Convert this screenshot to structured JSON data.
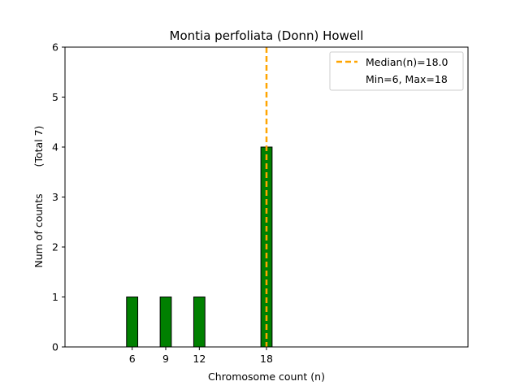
{
  "chart_data": {
    "type": "bar",
    "title": "Montia perfoliata (Donn) Howell",
    "xlabel": "Chromosome count (n)",
    "ylabel": "Num of counts",
    "ylabel_total": "(Total 7)",
    "x": [
      6,
      9,
      12,
      18
    ],
    "values": [
      1,
      1,
      1,
      4
    ],
    "bar_color": "#008000",
    "bar_edge_color": "#000000",
    "xlim": [
      0,
      36
    ],
    "ylim": [
      0,
      6
    ],
    "xticks": [
      6,
      9,
      12,
      18
    ],
    "yticks": [
      0,
      1,
      2,
      3,
      4,
      5,
      6
    ],
    "bar_width": 1,
    "baseline_span": [
      0,
      21
    ],
    "median": {
      "value": 18.0,
      "color": "#FFA500",
      "label": "Median(n)=18.0"
    },
    "legend": {
      "placement": "top-right",
      "entries": [
        "Median(n)=18.0",
        "Min=6, Max=18"
      ]
    },
    "grid": false
  }
}
